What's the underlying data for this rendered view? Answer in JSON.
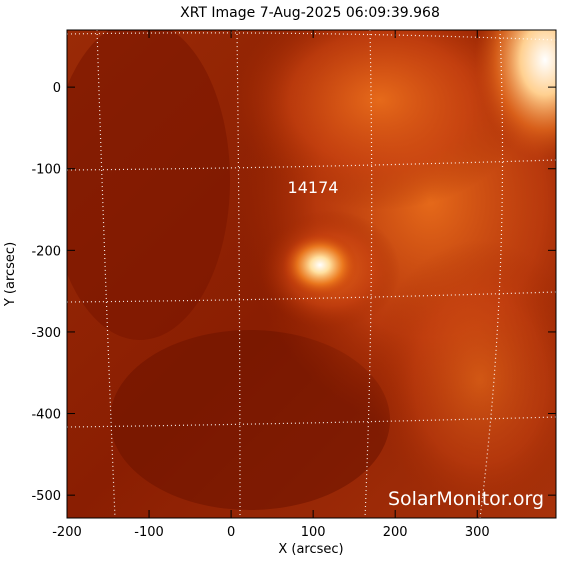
{
  "chart_data": {
    "type": "image",
    "title": "XRT Image  7-Aug-2025 06:09:39.968",
    "x_label": "X (arcsec)",
    "y_label": "Y (arcsec)",
    "annotations": [
      "14174"
    ],
    "watermark": "SolarMonitor.org",
    "xlim": [
      -200,
      396
    ],
    "ylim": [
      -528,
      70
    ],
    "xticks": [
      -200,
      -100,
      0,
      100,
      200,
      300
    ],
    "yticks": [
      -500,
      -400,
      -300,
      -200,
      -100,
      0
    ]
  }
}
